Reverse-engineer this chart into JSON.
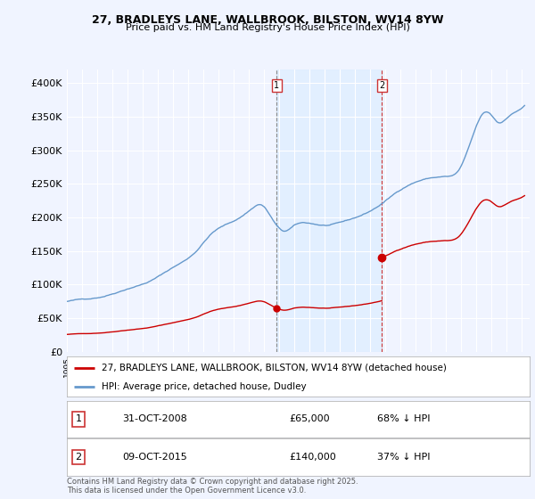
{
  "title_line1": "27, BRADLEYS LANE, WALLBROOK, BILSTON, WV14 8YW",
  "title_line2": "Price paid vs. HM Land Registry's House Price Index (HPI)",
  "legend_label_red": "27, BRADLEYS LANE, WALLBROOK, BILSTON, WV14 8YW (detached house)",
  "legend_label_blue": "HPI: Average price, detached house, Dudley",
  "transaction1_label": "1",
  "transaction1_date": "31-OCT-2008",
  "transaction1_price": "£65,000",
  "transaction1_hpi": "68% ↓ HPI",
  "transaction2_label": "2",
  "transaction2_date": "09-OCT-2015",
  "transaction2_price": "£140,000",
  "transaction2_hpi": "37% ↓ HPI",
  "footer": "Contains HM Land Registry data © Crown copyright and database right 2025.\nThis data is licensed under the Open Government Licence v3.0.",
  "ylim_min": 0,
  "ylim_max": 420000,
  "yticks": [
    0,
    50000,
    100000,
    150000,
    200000,
    250000,
    300000,
    350000,
    400000
  ],
  "ytick_labels": [
    "£0",
    "£50K",
    "£100K",
    "£150K",
    "£200K",
    "£250K",
    "£300K",
    "£350K",
    "£400K"
  ],
  "background_color": "#f0f4ff",
  "red_color": "#cc0000",
  "blue_color": "#6699cc",
  "blue_fill_color": "#ddeeff",
  "transaction1_x_year": 2008.83,
  "transaction1_y": 65000,
  "transaction2_x_year": 2015.77,
  "transaction2_y": 140000,
  "xmin": 1995.0,
  "xmax": 2025.5
}
